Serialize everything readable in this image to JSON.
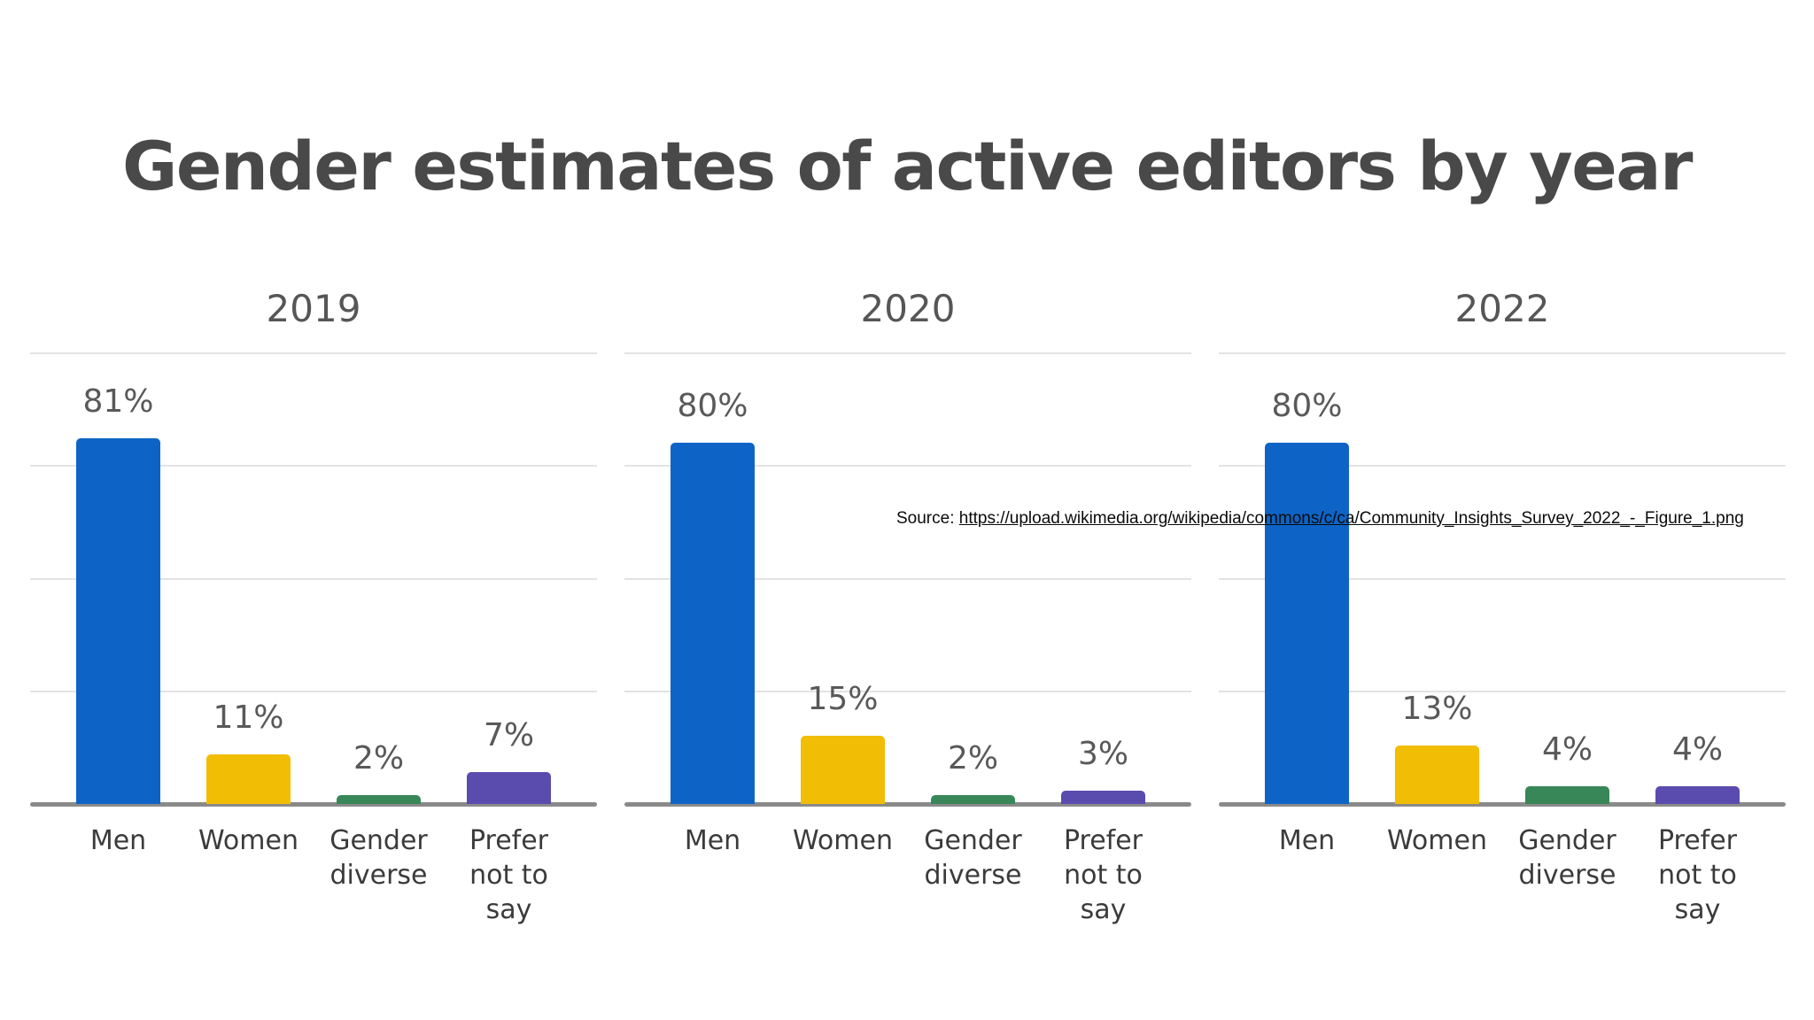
{
  "title": "Gender estimates of active editors by year",
  "source": {
    "prefix": "Source: ",
    "url": "https://upload.wikimedia.org/wikipedia/commons/c/ca/Community_Insights_Survey_2022_-_Figure_1.png"
  },
  "colors": {
    "bars": [
      "#0D64C6",
      "#F1BD05",
      "#388758",
      "#5A4BAE"
    ],
    "men": "#0D64C6",
    "women": "#F1BD05",
    "gender_diverse": "#388758",
    "prefer_not_to_say": "#5A4BAE",
    "gridline": "#e3e3e3",
    "axis": "#8a8a8a",
    "title_text": "#494949",
    "label_text": "#595959"
  },
  "chart_data": [
    {
      "type": "bar",
      "title": "2019",
      "categories": [
        "Men",
        "Women",
        "Gender diverse",
        "Prefer not to say"
      ],
      "values": [
        81,
        11,
        2,
        7
      ],
      "labels": [
        "81%",
        "11%",
        "2%",
        "7%"
      ],
      "xlabel": "",
      "ylabel": "",
      "ylim": [
        0,
        100
      ],
      "grid": true,
      "gridline_step": 25,
      "legend": "none"
    },
    {
      "type": "bar",
      "title": "2020",
      "categories": [
        "Men",
        "Women",
        "Gender diverse",
        "Prefer not to say"
      ],
      "values": [
        80,
        15,
        2,
        3
      ],
      "labels": [
        "80%",
        "15%",
        "2%",
        "3%"
      ],
      "xlabel": "",
      "ylabel": "",
      "ylim": [
        0,
        100
      ],
      "grid": true,
      "gridline_step": 25,
      "legend": "none"
    },
    {
      "type": "bar",
      "title": "2022",
      "categories": [
        "Men",
        "Women",
        "Gender diverse",
        "Prefer not to say"
      ],
      "values": [
        80,
        13,
        4,
        4
      ],
      "labels": [
        "80%",
        "13%",
        "4%",
        "4%"
      ],
      "xlabel": "",
      "ylabel": "",
      "ylim": [
        0,
        100
      ],
      "grid": true,
      "gridline_step": 25,
      "legend": "none"
    }
  ]
}
